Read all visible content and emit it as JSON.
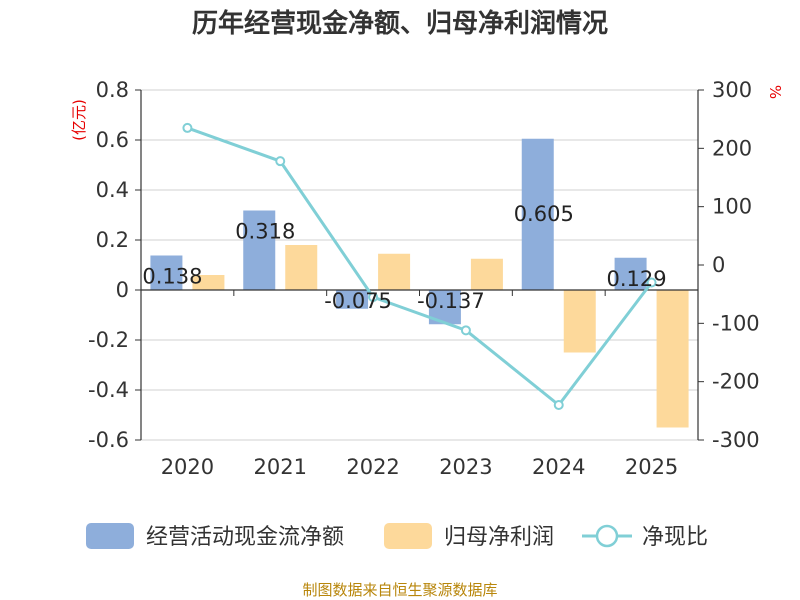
{
  "chart_data": {
    "type": "bar+line",
    "title": "历年经营现金净额、归母净利润情况",
    "categories": [
      "2020",
      "2021",
      "2022",
      "2023",
      "2024",
      "2025"
    ],
    "left_axis": {
      "unit": "(亿元)",
      "ylim": [
        -0.6,
        0.8
      ],
      "ticks": [
        "0.8",
        "0.6",
        "0.4",
        "0.2",
        "0",
        "-0.2",
        "-0.4",
        "-0.6"
      ]
    },
    "right_axis": {
      "unit": "%",
      "ylim": [
        -300,
        300
      ],
      "ticks": [
        "300",
        "200",
        "100",
        "0",
        "-100",
        "-200",
        "-300"
      ]
    },
    "series": [
      {
        "name": "经营活动现金流净额",
        "type": "bar",
        "axis": "left",
        "color": "#8eaedb",
        "values": [
          0.138,
          0.318,
          -0.075,
          -0.137,
          0.605,
          0.129
        ],
        "labels": [
          "0.138",
          "0.318",
          "-0.075",
          "-0.137",
          "0.605",
          "0.129"
        ]
      },
      {
        "name": "归母净利润",
        "type": "bar",
        "axis": "left",
        "color": "#fdd99b",
        "values": [
          0.06,
          0.18,
          0.145,
          0.125,
          -0.25,
          -0.55
        ]
      },
      {
        "name": "净现比",
        "type": "line",
        "axis": "right",
        "color": "#80cfd6",
        "values": [
          235,
          178,
          -55,
          -112,
          -240,
          -30
        ]
      }
    ],
    "legend_position": "bottom"
  },
  "source_text": "制图数据来自恒生聚源数据库"
}
